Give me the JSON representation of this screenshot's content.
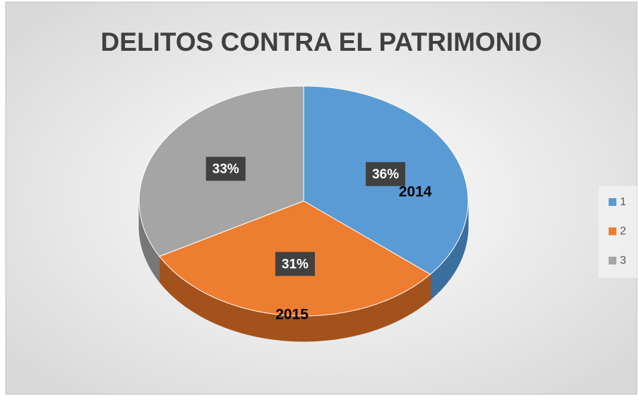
{
  "chart_data": {
    "type": "pie",
    "title": "DELITOS CONTRA EL PATRIMONIO",
    "categories": [
      "1",
      "2",
      "3"
    ],
    "values": [
      36,
      31,
      33
    ],
    "value_labels": [
      "36%",
      "31%",
      "33%"
    ],
    "colors": [
      "#5b9bd5",
      "#ed7d31",
      "#a5a5a5"
    ],
    "side_colors": [
      "#3a6f9e",
      "#a4521b",
      "#777777"
    ],
    "annotations": [
      "2014",
      "2015"
    ],
    "legend": "right"
  }
}
